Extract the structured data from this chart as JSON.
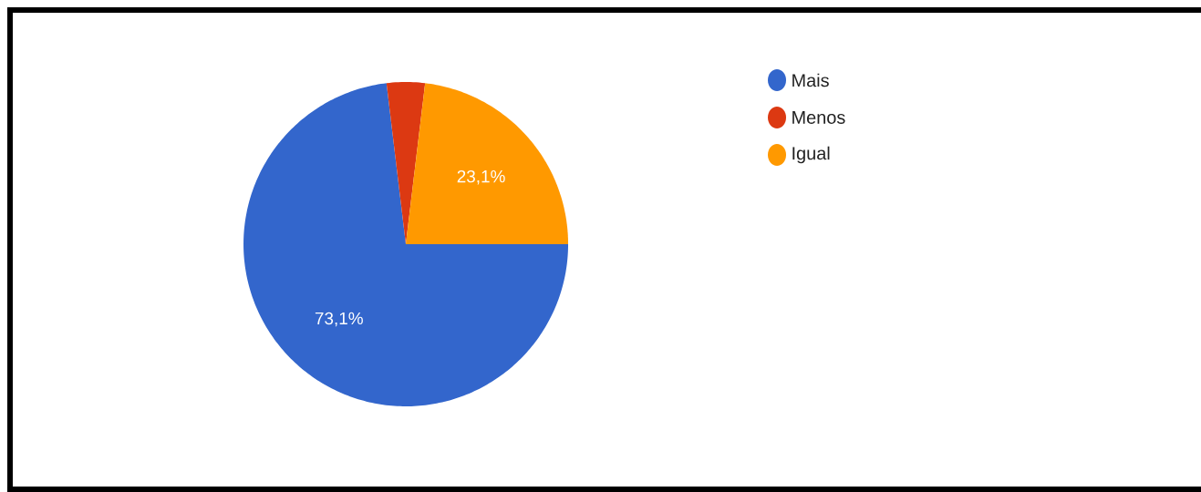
{
  "chart_data": {
    "type": "pie",
    "categories": [
      "Mais",
      "Menos",
      "Igual"
    ],
    "values": [
      73.1,
      3.8,
      23.1
    ],
    "colors": [
      "#3366cc",
      "#dc3912",
      "#ff9900"
    ],
    "value_labels": [
      "73,1%",
      null,
      "23,1%"
    ],
    "legend": "right"
  }
}
